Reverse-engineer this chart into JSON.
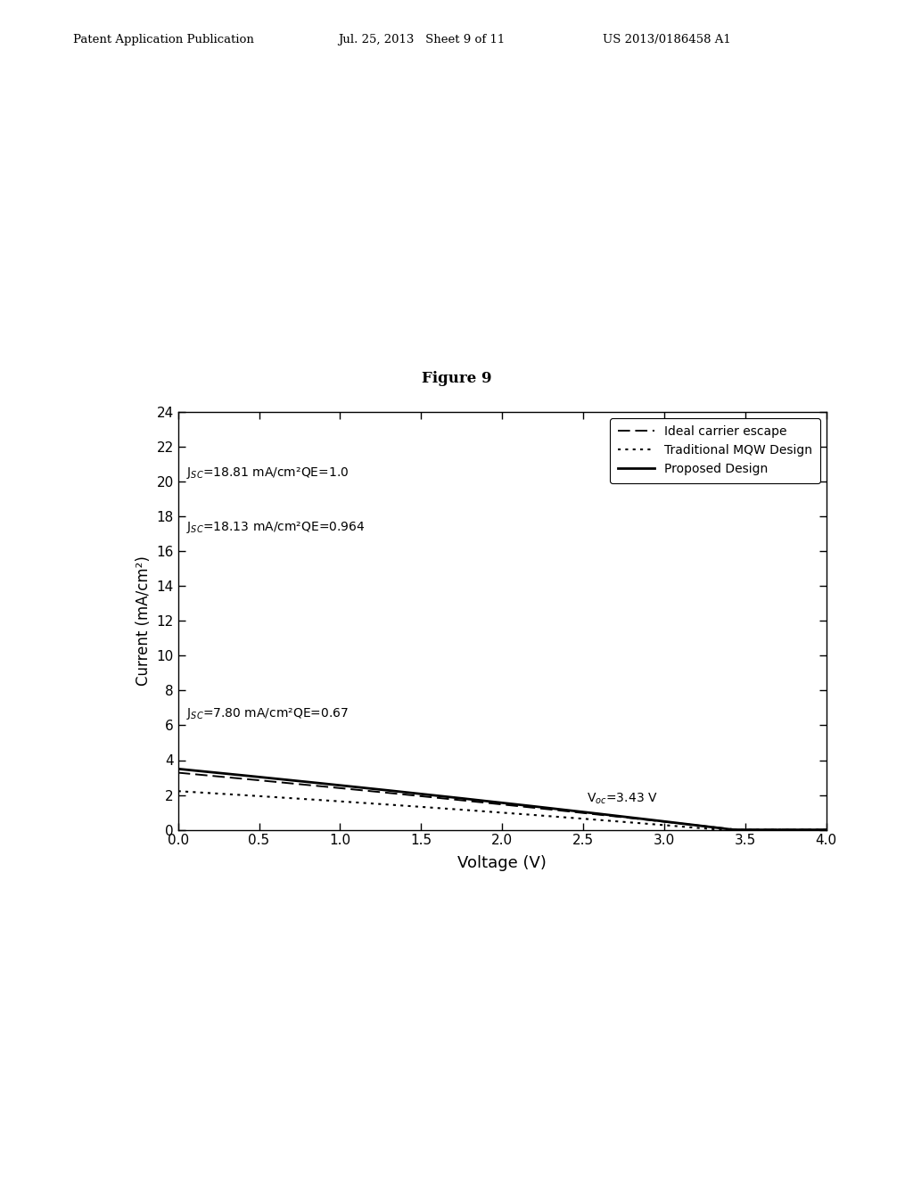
{
  "title": "Figure 9",
  "header_left": "Patent Application Publication",
  "header_mid": "Jul. 25, 2013   Sheet 9 of 11",
  "header_right": "US 2013/0186458 A1",
  "xlabel": "Voltage (V)",
  "ylabel": "Current (mA/cm²)",
  "xlim": [
    0.0,
    4.0
  ],
  "ylim": [
    0,
    24
  ],
  "xticks": [
    0.0,
    0.5,
    1.0,
    1.5,
    2.0,
    2.5,
    3.0,
    3.5,
    4.0
  ],
  "yticks": [
    0,
    2,
    4,
    6,
    8,
    10,
    12,
    14,
    16,
    18,
    20,
    22,
    24
  ],
  "legend_entries": [
    "Ideal carrier escape",
    "Traditional MQW Design",
    "Proposed Design"
  ],
  "annotation_ideal": "J$_{SC}$=18.81 mA/cm²QE=1.0",
  "annotation_proposed": "J$_{SC}$=18.13 mA/cm²QE=0.964",
  "annotation_traditional": "J$_{SC}$=7.80 mA/cm²QE=0.67",
  "annotation_voc": "V$_{oc}$=3.43 V",
  "Jsc_ideal": 18.81,
  "Jsc_proposed": 18.13,
  "Jsc_traditional": 7.8,
  "Voc_ideal": 3.45,
  "Voc_proposed": 3.43,
  "Voc_traditional": 3.35,
  "n_ideal": 18.0,
  "n_proposed": 16.0,
  "n_traditional": 10.0,
  "background_color": "#ffffff",
  "line_color": "#000000"
}
